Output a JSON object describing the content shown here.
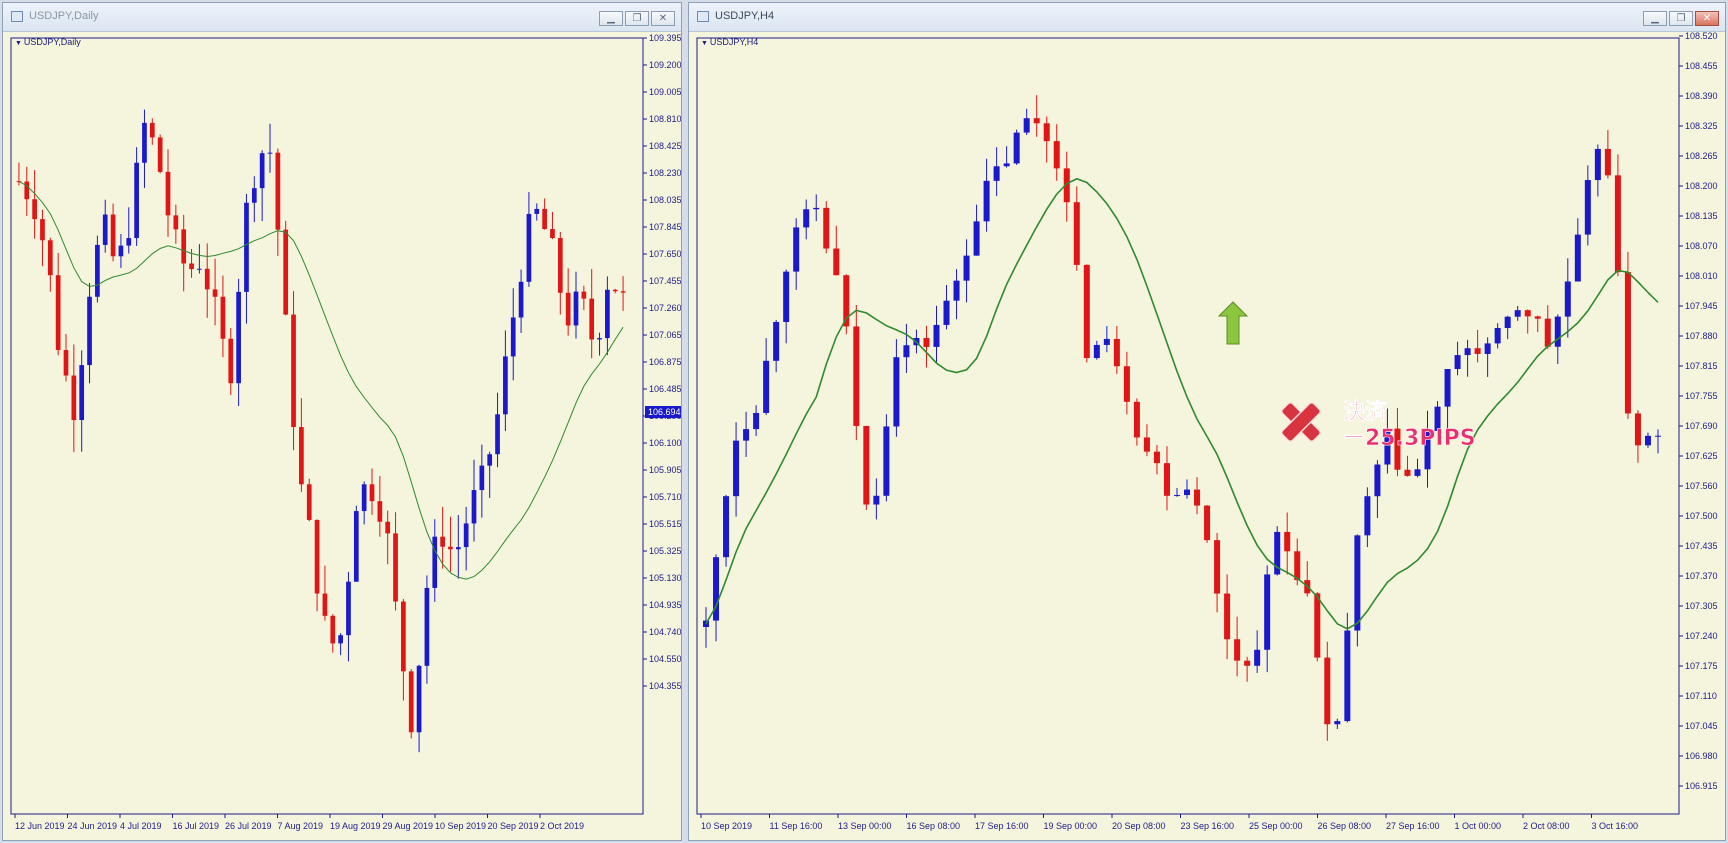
{
  "windows": [
    {
      "id": "daily",
      "title": "USDJPY,Daily",
      "symbol_label": "USDJPY,Daily",
      "active": false,
      "price_ticks": [
        "109.395",
        "109.200",
        "109.005",
        "108.810",
        "108.425",
        "108.230",
        "108.035",
        "107.845",
        "107.650",
        "107.455",
        "107.260",
        "107.065",
        "106.875",
        "106.485",
        "106.290",
        "106.100",
        "105.905",
        "105.710",
        "105.515",
        "105.325",
        "105.130",
        "104.935",
        "104.740",
        "104.550",
        "104.355"
      ],
      "current_price": "106.694",
      "time_labels": [
        "12 Jun 2019",
        "24 Jun 2019",
        "4 Jul 2019",
        "16 Jul 2019",
        "26 Jul 2019",
        "7 Aug 2019",
        "19 Aug 2019",
        "29 Aug 2019",
        "10 Sep 2019",
        "20 Sep 2019",
        "2 Oct 2019"
      ]
    },
    {
      "id": "h4",
      "title": "USDJPY,H4",
      "symbol_label": "USDJPY,H4",
      "active": true,
      "price_ticks": [
        "108.520",
        "108.455",
        "108.390",
        "108.325",
        "108.265",
        "108.200",
        "108.135",
        "108.070",
        "108.010",
        "107.945",
        "107.880",
        "107.815",
        "107.755",
        "107.690",
        "107.625",
        "107.560",
        "107.500",
        "107.435",
        "107.370",
        "107.305",
        "107.240",
        "107.175",
        "107.110",
        "107.045",
        "106.980",
        "106.915"
      ],
      "time_labels": [
        "10 Sep 2019",
        "11 Sep 16:00",
        "13 Sep 00:00",
        "16 Sep 08:00",
        "17 Sep 16:00",
        "19 Sep 00:00",
        "20 Sep 08:00",
        "23 Sep 16:00",
        "25 Sep 00:00",
        "26 Sep 08:00",
        "27 Sep 16:00",
        "1 Oct 00:00",
        "2 Oct 08:00",
        "3 Oct 16:00"
      ],
      "annotation": {
        "line1": "決済",
        "line2": "ー25.3PIPS"
      }
    }
  ],
  "colors": {
    "bull": "#1a1acc",
    "bear": "#e01616",
    "ma": "#2e8b2e",
    "background": "#f5f4dd",
    "axis_text": "#1d1d8c",
    "annotation_text": "#ea2e6f",
    "entry_arrow": "#8cc63f"
  },
  "icons": {
    "entry_marker": "up-arrow-icon",
    "exit_marker": "close-x-icon"
  }
}
